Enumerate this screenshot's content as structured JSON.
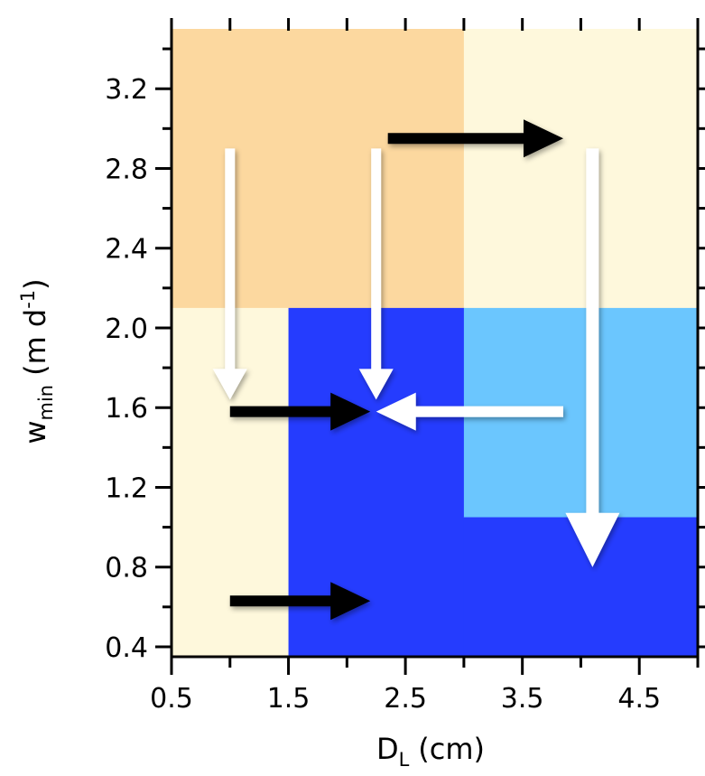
{
  "chart_data": {
    "type": "heatmap",
    "xlabel": {
      "main": "D",
      "sub": "L",
      "unit": "(cm)"
    },
    "ylabel": {
      "main": "w",
      "sub": "min",
      "unit_open": "(m d",
      "unit_sup": "-1",
      "unit_close": ")"
    },
    "xlim": [
      0.5,
      5.0
    ],
    "ylim": [
      0.35,
      3.5
    ],
    "x_ticks": [
      0.5,
      1.5,
      2.5,
      3.5,
      4.5
    ],
    "x_tick_labels": [
      "0.5",
      "1.5",
      "2.5",
      "3.5",
      "4.5"
    ],
    "y_ticks": [
      0.4,
      0.8,
      1.2,
      1.6,
      2.0,
      2.4,
      2.8,
      3.2
    ],
    "y_tick_labels": [
      "0.4",
      "0.8",
      "1.2",
      "1.6",
      "2.0",
      "2.4",
      "2.8",
      "3.2"
    ],
    "x_minor_step": 0.5,
    "y_minor_step": 0.2,
    "grid": false,
    "regions": [
      {
        "x": [
          0.5,
          3.0
        ],
        "y": [
          2.1,
          3.5
        ],
        "color": "#fcd89f"
      },
      {
        "x": [
          3.0,
          5.0
        ],
        "y": [
          2.1,
          3.5
        ],
        "color": "#fef8dc"
      },
      {
        "x": [
          0.5,
          1.5
        ],
        "y": [
          0.35,
          2.1
        ],
        "color": "#fef8dc"
      },
      {
        "x": [
          1.5,
          3.0
        ],
        "y": [
          0.35,
          2.1
        ],
        "color": "#253cfe"
      },
      {
        "x": [
          3.0,
          5.0
        ],
        "y": [
          1.05,
          2.1
        ],
        "color": "#6bc6fe"
      },
      {
        "x": [
          3.0,
          5.0
        ],
        "y": [
          0.35,
          1.05
        ],
        "color": "#253cfe"
      }
    ],
    "arrows": [
      {
        "from": [
          2.35,
          2.95
        ],
        "to": [
          3.85,
          2.95
        ],
        "color": "#000000"
      },
      {
        "from": [
          1.0,
          1.58
        ],
        "to": [
          2.2,
          1.58
        ],
        "color": "#000000"
      },
      {
        "from": [
          1.0,
          0.63
        ],
        "to": [
          2.2,
          0.63
        ],
        "color": "#000000"
      },
      {
        "from": [
          1.0,
          2.9
        ],
        "to": [
          1.0,
          1.64
        ],
        "color": "#ffffff"
      },
      {
        "from": [
          2.25,
          2.9
        ],
        "to": [
          2.25,
          1.64
        ],
        "color": "#ffffff"
      },
      {
        "from": [
          3.85,
          1.58
        ],
        "to": [
          2.25,
          1.58
        ],
        "color": "#ffffff"
      },
      {
        "from": [
          4.1,
          2.9
        ],
        "to": [
          4.1,
          0.8
        ],
        "color": "#ffffff"
      }
    ]
  }
}
